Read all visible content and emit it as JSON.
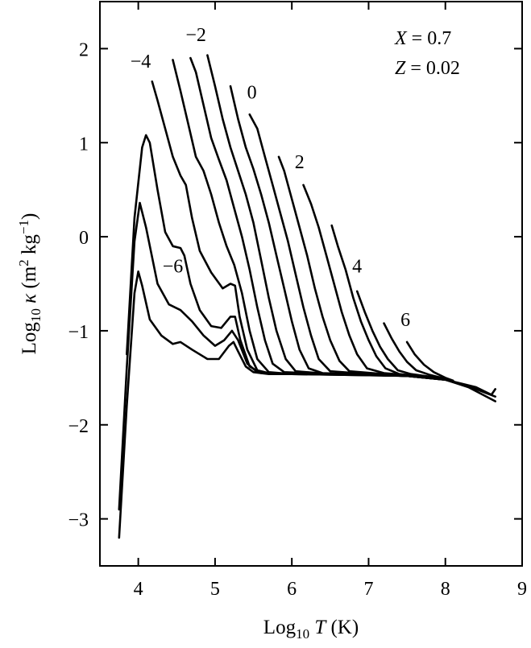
{
  "chart_data": {
    "type": "line",
    "xlabel_parts": {
      "pre": "Log",
      "sub": "10",
      "var": "T",
      "post": " (K)"
    },
    "ylabel_parts": {
      "pre": "Log",
      "sub": "10",
      "var": "κ",
      "unit1": " (m",
      "sup1": "2",
      "unit2": " kg",
      "sup2": "−1",
      "unit3": ")"
    },
    "xlim": [
      3.5,
      9
    ],
    "ylim": [
      -3.5,
      2.5
    ],
    "xticks": [
      4,
      5,
      6,
      7,
      8,
      9
    ],
    "xtick_labels": [
      "4",
      "5",
      "6",
      "7",
      "8",
      "9"
    ],
    "yticks": [
      -3,
      -2,
      -1,
      0,
      1,
      2
    ],
    "ytick_labels": [
      "−3",
      "−2",
      "−1",
      "0",
      "1",
      "2"
    ],
    "annotations": [
      {
        "var": "X",
        "text": " = 0.7"
      },
      {
        "var": "Z",
        "text": " = 0.02"
      }
    ],
    "series": [
      {
        "name": "−6",
        "points": [
          [
            3.75,
            -3.2
          ],
          [
            3.85,
            -1.8
          ],
          [
            3.95,
            -0.6
          ],
          [
            4.0,
            -0.37
          ],
          [
            4.05,
            -0.52
          ],
          [
            4.15,
            -0.88
          ],
          [
            4.3,
            -1.05
          ],
          [
            4.45,
            -1.14
          ],
          [
            4.55,
            -1.12
          ],
          [
            4.7,
            -1.2
          ],
          [
            4.9,
            -1.3
          ],
          [
            5.05,
            -1.3
          ],
          [
            5.18,
            -1.16
          ],
          [
            5.24,
            -1.12
          ],
          [
            5.3,
            -1.22
          ],
          [
            5.4,
            -1.38
          ],
          [
            5.5,
            -1.44
          ],
          [
            5.7,
            -1.46
          ],
          [
            6.2,
            -1.46
          ],
          [
            7.0,
            -1.47
          ],
          [
            7.5,
            -1.48
          ],
          [
            8.0,
            -1.52
          ],
          [
            8.3,
            -1.6
          ],
          [
            8.65,
            -1.75
          ]
        ]
      },
      {
        "name": "",
        "points": [
          [
            3.75,
            -2.9
          ],
          [
            3.85,
            -1.4
          ],
          [
            3.95,
            -0.05
          ],
          [
            4.02,
            0.36
          ],
          [
            4.1,
            0.1
          ],
          [
            4.25,
            -0.5
          ],
          [
            4.4,
            -0.72
          ],
          [
            4.55,
            -0.78
          ],
          [
            4.7,
            -0.9
          ],
          [
            4.85,
            -1.05
          ],
          [
            5.0,
            -1.16
          ],
          [
            5.12,
            -1.1
          ],
          [
            5.22,
            -1.0
          ],
          [
            5.3,
            -1.1
          ],
          [
            5.42,
            -1.35
          ],
          [
            5.55,
            -1.44
          ],
          [
            5.8,
            -1.46
          ],
          [
            6.5,
            -1.46
          ],
          [
            7.5,
            -1.48
          ],
          [
            8.0,
            -1.52
          ],
          [
            8.4,
            -1.62
          ],
          [
            8.65,
            -1.7
          ]
        ]
      },
      {
        "name": "",
        "points": [
          [
            3.85,
            -1.25
          ],
          [
            3.95,
            0.2
          ],
          [
            4.05,
            0.95
          ],
          [
            4.1,
            1.08
          ],
          [
            4.15,
            1.0
          ],
          [
            4.25,
            0.5
          ],
          [
            4.35,
            0.05
          ],
          [
            4.45,
            -0.1
          ],
          [
            4.55,
            -0.12
          ],
          [
            4.6,
            -0.2
          ],
          [
            4.68,
            -0.5
          ],
          [
            4.8,
            -0.78
          ],
          [
            4.95,
            -0.95
          ],
          [
            5.08,
            -0.97
          ],
          [
            5.2,
            -0.85
          ],
          [
            5.26,
            -0.85
          ],
          [
            5.33,
            -1.1
          ],
          [
            5.45,
            -1.38
          ],
          [
            5.6,
            -1.45
          ],
          [
            6.0,
            -1.46
          ],
          [
            7.5,
            -1.48
          ],
          [
            8.0,
            -1.52
          ],
          [
            8.4,
            -1.6
          ],
          [
            8.6,
            -1.68
          ],
          [
            8.65,
            -1.62
          ]
        ]
      },
      {
        "name": "−4",
        "points": [
          [
            4.18,
            1.65
          ],
          [
            4.25,
            1.45
          ],
          [
            4.35,
            1.15
          ],
          [
            4.45,
            0.85
          ],
          [
            4.55,
            0.65
          ],
          [
            4.62,
            0.55
          ],
          [
            4.7,
            0.2
          ],
          [
            4.8,
            -0.15
          ],
          [
            4.95,
            -0.38
          ],
          [
            5.1,
            -0.55
          ],
          [
            5.2,
            -0.5
          ],
          [
            5.26,
            -0.52
          ],
          [
            5.32,
            -0.85
          ],
          [
            5.42,
            -1.2
          ],
          [
            5.55,
            -1.42
          ],
          [
            5.7,
            -1.45
          ],
          [
            6.5,
            -1.46
          ],
          [
            7.5,
            -1.48
          ],
          [
            8.0,
            -1.52
          ]
        ]
      },
      {
        "name": "",
        "points": [
          [
            4.45,
            1.88
          ],
          [
            4.55,
            1.55
          ],
          [
            4.65,
            1.2
          ],
          [
            4.75,
            0.85
          ],
          [
            4.85,
            0.7
          ],
          [
            4.95,
            0.45
          ],
          [
            5.05,
            0.15
          ],
          [
            5.15,
            -0.1
          ],
          [
            5.25,
            -0.3
          ],
          [
            5.35,
            -0.6
          ],
          [
            5.45,
            -1.0
          ],
          [
            5.55,
            -1.3
          ],
          [
            5.7,
            -1.44
          ],
          [
            6.0,
            -1.46
          ],
          [
            7.5,
            -1.48
          ]
        ]
      },
      {
        "name": "−2",
        "points": [
          [
            4.68,
            1.9
          ],
          [
            4.75,
            1.75
          ],
          [
            4.85,
            1.4
          ],
          [
            4.95,
            1.05
          ],
          [
            5.05,
            0.82
          ],
          [
            5.15,
            0.6
          ],
          [
            5.25,
            0.3
          ],
          [
            5.35,
            0.0
          ],
          [
            5.45,
            -0.35
          ],
          [
            5.55,
            -0.75
          ],
          [
            5.65,
            -1.1
          ],
          [
            5.75,
            -1.35
          ],
          [
            5.9,
            -1.44
          ],
          [
            6.5,
            -1.46
          ],
          [
            7.5,
            -1.48
          ]
        ]
      },
      {
        "name": "",
        "points": [
          [
            4.9,
            1.93
          ],
          [
            5.0,
            1.6
          ],
          [
            5.1,
            1.25
          ],
          [
            5.2,
            0.95
          ],
          [
            5.3,
            0.7
          ],
          [
            5.4,
            0.45
          ],
          [
            5.5,
            0.15
          ],
          [
            5.6,
            -0.25
          ],
          [
            5.7,
            -0.65
          ],
          [
            5.8,
            -1.0
          ],
          [
            5.92,
            -1.3
          ],
          [
            6.05,
            -1.43
          ],
          [
            6.5,
            -1.46
          ],
          [
            7.5,
            -1.48
          ]
        ]
      },
      {
        "name": "",
        "points": [
          [
            5.2,
            1.6
          ],
          [
            5.3,
            1.25
          ],
          [
            5.4,
            0.95
          ],
          [
            5.5,
            0.72
          ],
          [
            5.6,
            0.45
          ],
          [
            5.7,
            0.15
          ],
          [
            5.8,
            -0.2
          ],
          [
            5.9,
            -0.55
          ],
          [
            6.0,
            -0.9
          ],
          [
            6.1,
            -1.2
          ],
          [
            6.22,
            -1.4
          ],
          [
            6.4,
            -1.45
          ],
          [
            7.5,
            -1.48
          ]
        ]
      },
      {
        "name": "0",
        "points": [
          [
            5.45,
            1.3
          ],
          [
            5.55,
            1.15
          ],
          [
            5.65,
            0.85
          ],
          [
            5.75,
            0.55
          ],
          [
            5.85,
            0.25
          ],
          [
            5.95,
            -0.05
          ],
          [
            6.05,
            -0.4
          ],
          [
            6.15,
            -0.75
          ],
          [
            6.25,
            -1.05
          ],
          [
            6.35,
            -1.3
          ],
          [
            6.5,
            -1.43
          ],
          [
            7.0,
            -1.46
          ],
          [
            7.6,
            -1.48
          ]
        ]
      },
      {
        "name": "",
        "points": [
          [
            5.83,
            0.85
          ],
          [
            5.9,
            0.7
          ],
          [
            6.0,
            0.4
          ],
          [
            6.1,
            0.1
          ],
          [
            6.2,
            -0.2
          ],
          [
            6.3,
            -0.55
          ],
          [
            6.4,
            -0.85
          ],
          [
            6.5,
            -1.1
          ],
          [
            6.62,
            -1.32
          ],
          [
            6.75,
            -1.43
          ],
          [
            7.2,
            -1.46
          ],
          [
            7.7,
            -1.49
          ]
        ]
      },
      {
        "name": "2",
        "points": [
          [
            6.15,
            0.55
          ],
          [
            6.25,
            0.35
          ],
          [
            6.35,
            0.1
          ],
          [
            6.45,
            -0.2
          ],
          [
            6.55,
            -0.5
          ],
          [
            6.65,
            -0.8
          ],
          [
            6.75,
            -1.05
          ],
          [
            6.85,
            -1.25
          ],
          [
            6.98,
            -1.4
          ],
          [
            7.2,
            -1.45
          ],
          [
            7.8,
            -1.49
          ]
        ]
      },
      {
        "name": "",
        "points": [
          [
            6.52,
            0.12
          ],
          [
            6.6,
            -0.1
          ],
          [
            6.7,
            -0.35
          ],
          [
            6.8,
            -0.65
          ],
          [
            6.9,
            -0.9
          ],
          [
            7.0,
            -1.1
          ],
          [
            7.1,
            -1.27
          ],
          [
            7.22,
            -1.4
          ],
          [
            7.4,
            -1.46
          ],
          [
            7.9,
            -1.5
          ]
        ]
      },
      {
        "name": "4",
        "points": [
          [
            6.85,
            -0.58
          ],
          [
            6.95,
            -0.8
          ],
          [
            7.05,
            -1.0
          ],
          [
            7.15,
            -1.17
          ],
          [
            7.25,
            -1.3
          ],
          [
            7.38,
            -1.42
          ],
          [
            7.55,
            -1.46
          ],
          [
            8.0,
            -1.51
          ]
        ]
      },
      {
        "name": "",
        "points": [
          [
            7.2,
            -0.92
          ],
          [
            7.3,
            -1.08
          ],
          [
            7.4,
            -1.22
          ],
          [
            7.5,
            -1.33
          ],
          [
            7.62,
            -1.42
          ],
          [
            7.8,
            -1.47
          ],
          [
            8.05,
            -1.52
          ]
        ]
      },
      {
        "name": "6",
        "points": [
          [
            7.5,
            -1.12
          ],
          [
            7.6,
            -1.25
          ],
          [
            7.72,
            -1.36
          ],
          [
            7.85,
            -1.44
          ],
          [
            8.0,
            -1.5
          ],
          [
            8.1,
            -1.53
          ]
        ]
      }
    ],
    "label_positions_data": [
      {
        "text": "−6",
        "x": 4.45,
        "y": -0.38
      },
      {
        "text": "−4",
        "x": 4.03,
        "y": 1.8
      },
      {
        "text": "−2",
        "x": 4.75,
        "y": 2.08
      },
      {
        "text": "0",
        "x": 5.48,
        "y": 1.47
      },
      {
        "text": "2",
        "x": 6.1,
        "y": 0.73
      },
      {
        "text": "4",
        "x": 6.85,
        "y": -0.38
      },
      {
        "text": "6",
        "x": 7.48,
        "y": -0.95
      }
    ]
  }
}
